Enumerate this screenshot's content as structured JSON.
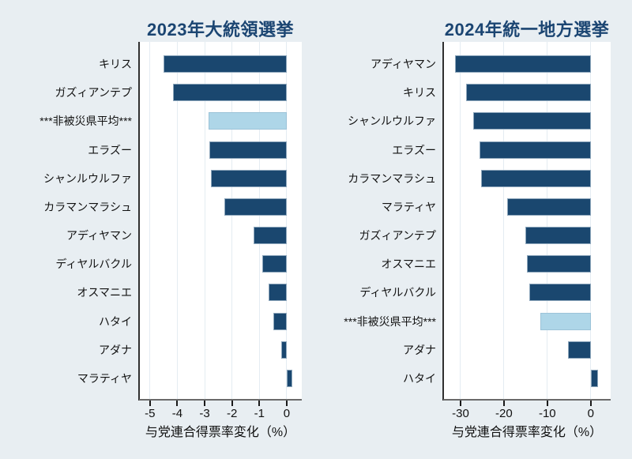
{
  "figure": {
    "background": "#e8eef2",
    "plot_background": "#ffffff"
  },
  "colors": {
    "bar": "#1a476f",
    "bar_highlight": "#aed6e8",
    "gridline": "#e4ecf2",
    "axis_line": "#303030",
    "x_axis_line": "#6a6a6a",
    "title": "#1b4572",
    "text": "#111111"
  },
  "chart_data": [
    {
      "type": "bar",
      "orientation": "horizontal",
      "title": "2023年大統領選挙",
      "xlabel": "与党連合得票率変化（%）",
      "categories": [
        "キリス",
        "ガズィアンテプ",
        "***非被災県平均***",
        "エラズー",
        "シャンルウルファ",
        "カラマンマラシュ",
        "アディヤマン",
        "ディヤルバクル",
        "オスマニエ",
        "ハタイ",
        "アダナ",
        "マラティヤ"
      ],
      "values": [
        -4.5,
        -4.15,
        -2.86,
        -2.84,
        -2.76,
        -2.27,
        -1.2,
        -0.9,
        -0.65,
        -0.49,
        -0.2,
        0.2
      ],
      "highlight_index": 2,
      "highlight_label": "***非被災県平均***",
      "xticks": [
        -5,
        -4,
        -3,
        -2,
        -1,
        0
      ],
      "xlim": [
        -5.4,
        0.55
      ],
      "grid": true,
      "legend": "none"
    },
    {
      "type": "bar",
      "orientation": "horizontal",
      "title": "2024年統一地方選挙",
      "xlabel": "与党連合得票率変化（%）",
      "categories": [
        "アディヤマン",
        "キリス",
        "シャンルウルファ",
        "エラズー",
        "カラマンマラシュ",
        "マラティヤ",
        "ガズィアンテプ",
        "オスマニエ",
        "ディヤルバクル",
        "***非被災県平均***",
        "アダナ",
        "ハタイ"
      ],
      "values": [
        -31.2,
        -28.7,
        -27.0,
        -25.7,
        -25.2,
        -19.3,
        -15.1,
        -14.7,
        -14.1,
        -11.6,
        -5.3,
        1.7
      ],
      "highlight_index": 9,
      "highlight_label": "***非被災県平均***",
      "xticks": [
        -30,
        -20,
        -10,
        0
      ],
      "xlim": [
        -34,
        4.6
      ],
      "grid": true,
      "legend": "none"
    }
  ]
}
